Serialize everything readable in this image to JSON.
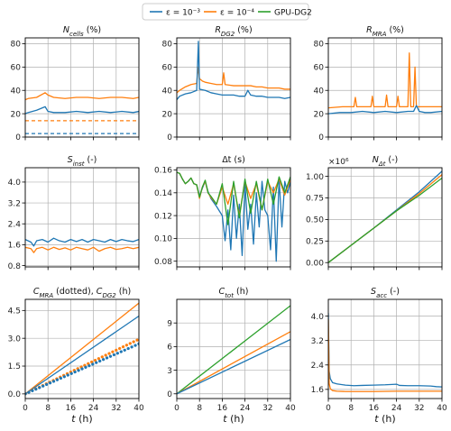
{
  "legend": [
    {
      "label": "ε = 10⁻³",
      "color": "#1f77b4"
    },
    {
      "label": "ε = 10⁻⁴",
      "color": "#ff7f0e"
    },
    {
      "label": "GPU-DG2",
      "color": "#2ca02c"
    }
  ],
  "colors": {
    "eps3": "#1f77b4",
    "eps4": "#ff7f0e",
    "gpu": "#2ca02c"
  },
  "chart_data": [
    {
      "type": "line",
      "title": "N_cells (%)",
      "xlabel": "",
      "ylabel": "",
      "xlim": [
        0,
        40
      ],
      "ylim": [
        0,
        85
      ],
      "xticks": [
        0,
        8,
        16,
        24,
        32,
        40
      ],
      "yticks": [
        0,
        20,
        40,
        60,
        80
      ],
      "yticklabels": [
        "0",
        "20",
        "40",
        "60",
        "80"
      ],
      "xticklabels": [],
      "grid": true,
      "series": [
        {
          "legend_key": "eps3",
          "style": "solid",
          "x": [
            0,
            1,
            4,
            7,
            8,
            10,
            14,
            18,
            22,
            26,
            30,
            34,
            38,
            40
          ],
          "y": [
            20,
            21,
            23,
            26,
            22,
            21,
            21,
            22,
            21,
            22,
            21,
            22,
            21,
            22
          ]
        },
        {
          "legend_key": "eps4",
          "style": "solid",
          "x": [
            0,
            1,
            4,
            7,
            8,
            10,
            14,
            18,
            22,
            26,
            30,
            34,
            38,
            40
          ],
          "y": [
            32,
            33,
            34,
            38,
            36,
            34,
            33,
            34,
            34,
            33,
            34,
            34,
            33,
            34
          ]
        },
        {
          "legend_key": "eps4",
          "style": "dashed",
          "x": [
            0,
            40
          ],
          "y": [
            14,
            14
          ]
        },
        {
          "legend_key": "eps3",
          "style": "dashed",
          "x": [
            0,
            40
          ],
          "y": [
            3,
            3
          ]
        }
      ]
    },
    {
      "type": "line",
      "title": "R_DG2 (%)",
      "xlabel": "",
      "ylabel": "",
      "xlim": [
        0,
        40
      ],
      "ylim": [
        0,
        85
      ],
      "xticks": [
        0,
        8,
        16,
        24,
        32,
        40
      ],
      "yticks": [
        0,
        20,
        40,
        60,
        80
      ],
      "yticklabels": [
        "0",
        "20",
        "40",
        "60",
        "80"
      ],
      "xticklabels": [],
      "grid": true,
      "series": [
        {
          "legend_key": "eps4",
          "style": "solid",
          "x": [
            0,
            1,
            3,
            5,
            7,
            7.5,
            8,
            9,
            10,
            12,
            14,
            16,
            16.5,
            17,
            20,
            22,
            24,
            25,
            26,
            28,
            30,
            32,
            34,
            36,
            38,
            40
          ],
          "y": [
            38,
            40,
            43,
            45,
            46,
            60,
            50,
            48,
            47,
            46,
            45,
            45,
            55,
            45,
            44,
            44,
            44,
            44,
            44,
            43,
            43,
            42,
            42,
            42,
            41,
            41
          ]
        },
        {
          "legend_key": "eps3",
          "style": "solid",
          "x": [
            0,
            1,
            3,
            5,
            7,
            7.6,
            8,
            10,
            12,
            14,
            16,
            18,
            20,
            22,
            24,
            25,
            26,
            28,
            30,
            32,
            34,
            36,
            38,
            40
          ],
          "y": [
            32,
            35,
            37,
            38,
            40,
            82,
            41,
            40,
            38,
            37,
            36,
            36,
            36,
            35,
            35,
            40,
            36,
            35,
            35,
            34,
            34,
            34,
            33,
            34
          ]
        }
      ]
    },
    {
      "type": "line",
      "title": "R_MRA (%)",
      "xlabel": "",
      "ylabel": "",
      "xlim": [
        0,
        40
      ],
      "ylim": [
        0,
        85
      ],
      "xticks": [
        0,
        8,
        16,
        24,
        32,
        40
      ],
      "yticks": [
        0,
        20,
        40,
        60,
        80
      ],
      "yticklabels": [
        "0",
        "20",
        "40",
        "60",
        "80"
      ],
      "xticklabels": [],
      "grid": true,
      "series": [
        {
          "legend_key": "eps4",
          "style": "solid",
          "x": [
            0,
            5,
            9,
            9.5,
            10,
            15,
            15.5,
            16,
            20,
            20.5,
            21,
            24,
            24.5,
            25,
            28,
            28.5,
            29,
            30,
            30.5,
            31,
            32,
            34,
            36,
            40
          ],
          "y": [
            25,
            26,
            26,
            34,
            26,
            26,
            35,
            26,
            26,
            36,
            26,
            26,
            35,
            26,
            26,
            72,
            26,
            26,
            60,
            26,
            26,
            26,
            26,
            26
          ]
        },
        {
          "legend_key": "eps3",
          "style": "solid",
          "x": [
            0,
            4,
            8,
            12,
            16,
            20,
            24,
            28,
            30,
            31,
            32,
            34,
            36,
            40
          ],
          "y": [
            20,
            21,
            21,
            22,
            21,
            22,
            21,
            22,
            22,
            27,
            22,
            21,
            21,
            22
          ]
        }
      ]
    },
    {
      "type": "line",
      "title": "S_inst (-)",
      "xlabel": "",
      "ylabel": "",
      "xlim": [
        0,
        40
      ],
      "ylim": [
        0.75,
        4.55
      ],
      "xticks": [
        0,
        8,
        16,
        24,
        32,
        40
      ],
      "yticks": [
        0.8,
        1.6,
        2.4,
        3.2,
        4.0
      ],
      "yticklabels": [
        "0.8",
        "1.6",
        "2.4",
        "3.2",
        "4.0"
      ],
      "xticklabels": [],
      "grid": true,
      "series": [
        {
          "legend_key": "eps3",
          "style": "solid",
          "x": [
            0,
            2,
            3,
            4,
            6,
            8,
            10,
            12,
            14,
            16,
            18,
            20,
            22,
            24,
            26,
            28,
            30,
            32,
            34,
            36,
            38,
            40
          ],
          "y": [
            1.8,
            1.7,
            1.55,
            1.75,
            1.8,
            1.7,
            1.85,
            1.75,
            1.7,
            1.8,
            1.72,
            1.8,
            1.7,
            1.8,
            1.75,
            1.7,
            1.8,
            1.72,
            1.8,
            1.75,
            1.72,
            1.8
          ]
        },
        {
          "legend_key": "eps4",
          "style": "solid",
          "x": [
            0,
            2,
            3,
            4,
            6,
            8,
            10,
            12,
            14,
            16,
            18,
            20,
            22,
            24,
            26,
            28,
            30,
            32,
            34,
            36,
            38,
            40
          ],
          "y": [
            1.5,
            1.45,
            1.3,
            1.45,
            1.5,
            1.4,
            1.5,
            1.42,
            1.48,
            1.4,
            1.5,
            1.45,
            1.4,
            1.5,
            1.35,
            1.45,
            1.5,
            1.42,
            1.45,
            1.5,
            1.45,
            1.5
          ]
        }
      ]
    },
    {
      "type": "line",
      "title": "Δt (s)",
      "xlabel": "",
      "ylabel": "",
      "xlim": [
        0,
        40
      ],
      "ylim": [
        0.075,
        0.162
      ],
      "xticks": [
        0,
        8,
        16,
        24,
        32,
        40
      ],
      "yticks": [
        0.08,
        0.1,
        0.12,
        0.14,
        0.16
      ],
      "yticklabels": [
        "0.08",
        "0.10",
        "0.12",
        "0.14",
        "0.16"
      ],
      "xticklabels": [],
      "grid": true,
      "series": [
        {
          "legend_key": "eps3",
          "style": "solid",
          "x": [
            0,
            1,
            2,
            3,
            4,
            5,
            6,
            7,
            8,
            9,
            10,
            11,
            12,
            14,
            16,
            17,
            18,
            19,
            20,
            21,
            22,
            23,
            24,
            25,
            26,
            27,
            28,
            29,
            30,
            31,
            32,
            33,
            34,
            35,
            36,
            37,
            38,
            39,
            40
          ],
          "y": [
            0.158,
            0.157,
            0.152,
            0.148,
            0.15,
            0.153,
            0.148,
            0.147,
            0.137,
            0.144,
            0.15,
            0.141,
            0.135,
            0.128,
            0.12,
            0.098,
            0.125,
            0.09,
            0.138,
            0.1,
            0.13,
            0.085,
            0.148,
            0.108,
            0.13,
            0.095,
            0.14,
            0.11,
            0.15,
            0.125,
            0.12,
            0.09,
            0.145,
            0.08,
            0.152,
            0.11,
            0.15,
            0.14,
            0.15
          ]
        },
        {
          "legend_key": "eps4",
          "style": "solid",
          "x": [
            0,
            1,
            2,
            3,
            4,
            5,
            6,
            7,
            8,
            9,
            10,
            11,
            12,
            14,
            16,
            18,
            20,
            22,
            24,
            26,
            28,
            30,
            32,
            34,
            36,
            38,
            40
          ],
          "y": [
            0.158,
            0.157,
            0.152,
            0.148,
            0.15,
            0.153,
            0.148,
            0.147,
            0.135,
            0.145,
            0.15,
            0.14,
            0.136,
            0.13,
            0.145,
            0.13,
            0.148,
            0.12,
            0.15,
            0.135,
            0.148,
            0.125,
            0.15,
            0.14,
            0.152,
            0.138,
            0.152
          ]
        },
        {
          "legend_key": "gpu",
          "style": "solid",
          "x": [
            0,
            1,
            2,
            3,
            4,
            5,
            6,
            7,
            8,
            9,
            10,
            11,
            12,
            14,
            16,
            18,
            20,
            22,
            24,
            26,
            28,
            30,
            32,
            34,
            36,
            38,
            40
          ],
          "y": [
            0.158,
            0.157,
            0.152,
            0.148,
            0.15,
            0.153,
            0.148,
            0.147,
            0.136,
            0.145,
            0.151,
            0.14,
            0.137,
            0.13,
            0.148,
            0.112,
            0.15,
            0.118,
            0.152,
            0.122,
            0.15,
            0.125,
            0.152,
            0.13,
            0.154,
            0.14,
            0.154
          ]
        }
      ]
    },
    {
      "type": "line",
      "title": "N_Δt (-)",
      "multiplier": "×10⁶",
      "xlabel": "",
      "ylabel": "",
      "xlim": [
        0,
        40
      ],
      "ylim": [
        -0.05,
        1.1
      ],
      "xticks": [
        0,
        8,
        16,
        24,
        32,
        40
      ],
      "yticks": [
        0,
        0.25,
        0.5,
        0.75,
        1.0
      ],
      "yticklabels": [
        "0.00",
        "0.25",
        "0.50",
        "0.75",
        "1.00"
      ],
      "xticklabels": [],
      "grid": true,
      "series": [
        {
          "legend_key": "eps3",
          "style": "solid",
          "x": [
            0,
            16,
            24,
            32,
            40
          ],
          "y": [
            0,
            0.4,
            0.61,
            0.82,
            1.06
          ]
        },
        {
          "legend_key": "eps4",
          "style": "solid",
          "x": [
            0,
            16,
            24,
            32,
            40
          ],
          "y": [
            0,
            0.4,
            0.6,
            0.8,
            1.02
          ]
        },
        {
          "legend_key": "gpu",
          "style": "solid",
          "x": [
            0,
            16,
            24,
            32,
            40
          ],
          "y": [
            0,
            0.4,
            0.6,
            0.78,
            0.98
          ]
        }
      ]
    },
    {
      "type": "line",
      "title": "C_MRA (dotted), C_DG2 (h)",
      "xlabel": "t (h)",
      "ylabel": "",
      "xlim": [
        0,
        40
      ],
      "ylim": [
        -0.25,
        5.1
      ],
      "xticks": [
        0,
        8,
        16,
        24,
        32,
        40
      ],
      "yticks": [
        0,
        1.5,
        3.0,
        4.5
      ],
      "yticklabels": [
        "0.0",
        "1.5",
        "3.0",
        "4.5"
      ],
      "xticklabels": [
        "0",
        "8",
        "16",
        "24",
        "32",
        "40"
      ],
      "grid": true,
      "series": [
        {
          "legend_key": "eps4",
          "style": "solid",
          "x": [
            0,
            40
          ],
          "y": [
            0,
            4.9
          ]
        },
        {
          "legend_key": "eps3",
          "style": "solid",
          "x": [
            0,
            40
          ],
          "y": [
            0,
            4.2
          ]
        },
        {
          "legend_key": "eps4",
          "style": "dotted",
          "x": [
            0,
            40
          ],
          "y": [
            0,
            2.95
          ]
        },
        {
          "legend_key": "eps3",
          "style": "dotted",
          "x": [
            0,
            40
          ],
          "y": [
            0,
            2.7
          ]
        }
      ]
    },
    {
      "type": "line",
      "title": "C_tot (h)",
      "xlabel": "t (h)",
      "ylabel": "",
      "xlim": [
        0,
        40
      ],
      "ylim": [
        -0.6,
        12
      ],
      "xticks": [
        0,
        8,
        16,
        24,
        32,
        40
      ],
      "yticks": [
        0,
        3,
        6,
        9
      ],
      "yticklabels": [
        "0",
        "3",
        "6",
        "9"
      ],
      "xticklabels": [
        "0",
        "8",
        "16",
        "24",
        "32",
        "40"
      ],
      "grid": true,
      "series": [
        {
          "legend_key": "gpu",
          "style": "solid",
          "x": [
            0,
            40
          ],
          "y": [
            0,
            11.2
          ]
        },
        {
          "legend_key": "eps4",
          "style": "solid",
          "x": [
            0,
            40
          ],
          "y": [
            0,
            7.9
          ]
        },
        {
          "legend_key": "eps3",
          "style": "solid",
          "x": [
            0,
            40
          ],
          "y": [
            0,
            6.9
          ]
        }
      ]
    },
    {
      "type": "line",
      "title": "S_acc (-)",
      "xlabel": "t (h)",
      "ylabel": "",
      "xlim": [
        0,
        40
      ],
      "ylim": [
        1.3,
        4.55
      ],
      "xticks": [
        0,
        8,
        16,
        24,
        32,
        40
      ],
      "yticks": [
        1.6,
        2.4,
        3.2,
        4.0
      ],
      "yticklabels": [
        "1.6",
        "2.4",
        "3.2",
        "4.0"
      ],
      "xticklabels": [
        "0",
        "8",
        "16",
        "24",
        "32",
        "40"
      ],
      "grid": true,
      "series": [
        {
          "legend_key": "eps3",
          "style": "solid",
          "x": [
            0,
            0.3,
            0.7,
            1.5,
            3,
            6,
            9,
            12,
            16,
            20,
            24,
            25,
            28,
            32,
            36,
            38,
            40
          ],
          "y": [
            4.1,
            2.2,
            1.95,
            1.82,
            1.78,
            1.74,
            1.72,
            1.73,
            1.74,
            1.75,
            1.77,
            1.73,
            1.72,
            1.72,
            1.71,
            1.69,
            1.68
          ]
        },
        {
          "legend_key": "eps4",
          "style": "solid",
          "x": [
            0,
            0.3,
            0.7,
            1.5,
            3,
            6,
            10,
            16,
            24,
            32,
            40
          ],
          "y": [
            3.9,
            1.8,
            1.62,
            1.56,
            1.54,
            1.53,
            1.53,
            1.53,
            1.54,
            1.54,
            1.54
          ]
        }
      ]
    }
  ]
}
